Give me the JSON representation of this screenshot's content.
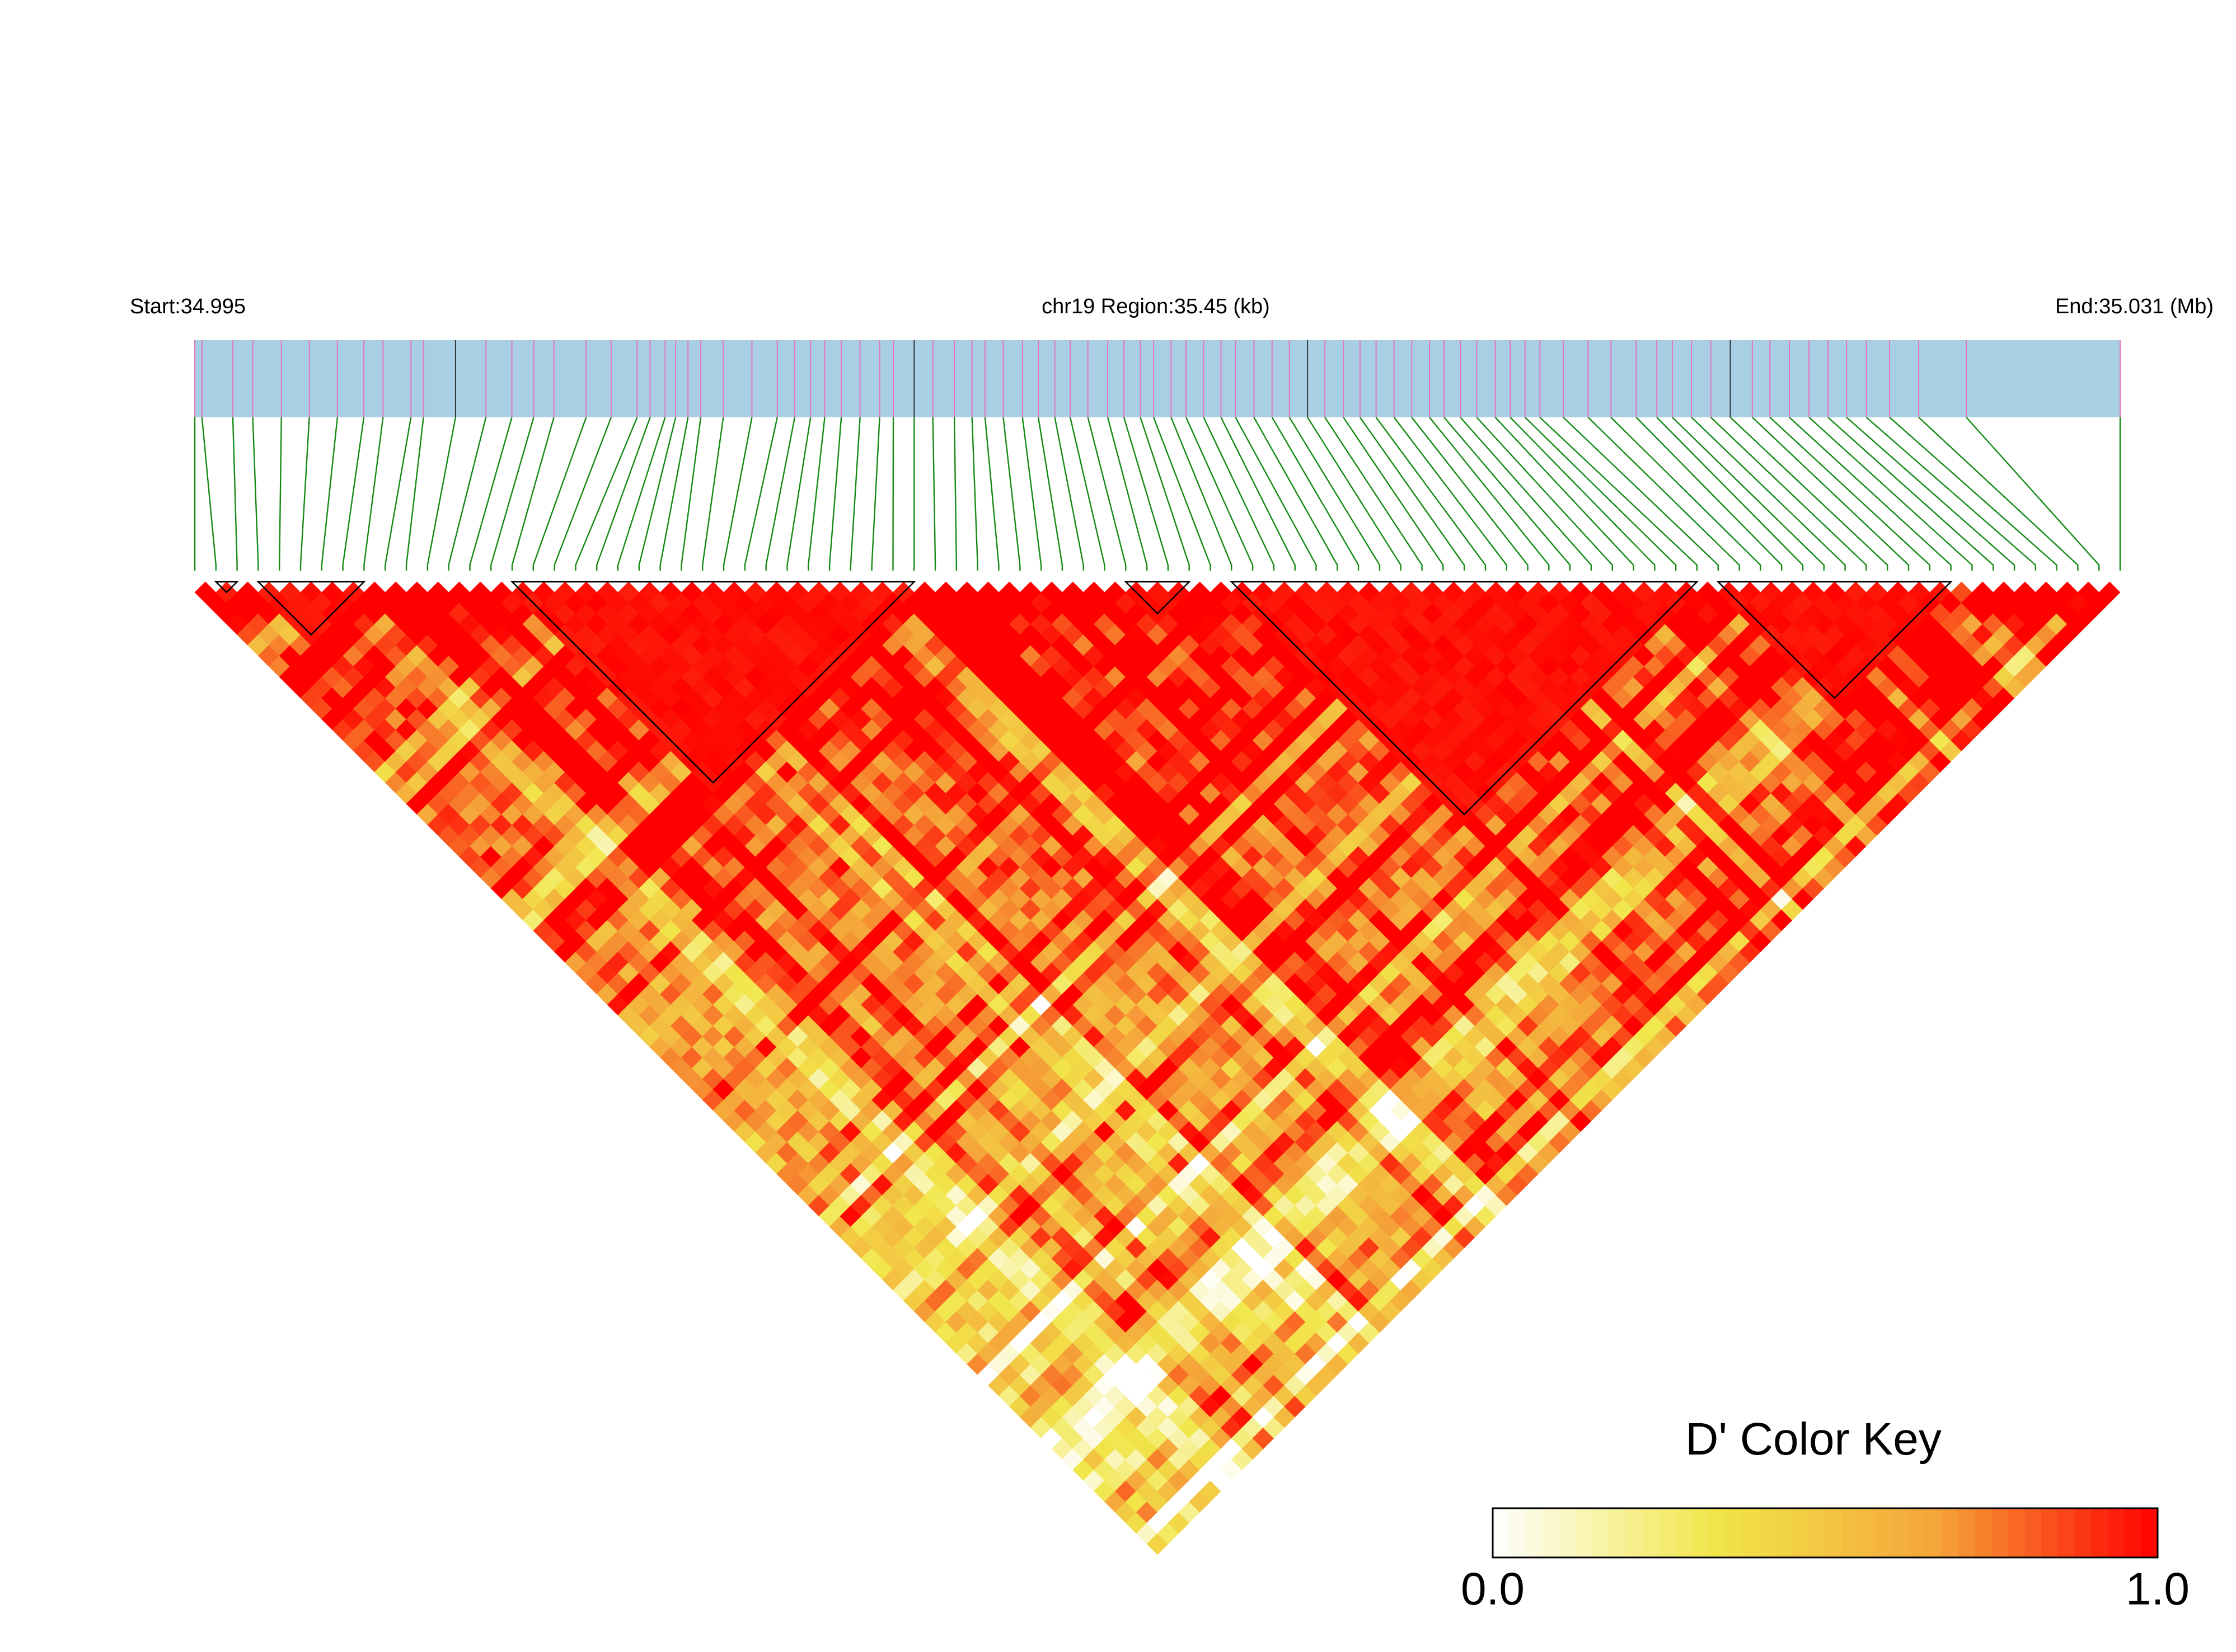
{
  "chart_data": {
    "type": "heatmap",
    "subtype": "ld-triangle",
    "header": {
      "start_label": "Start:34.995",
      "region_label": "chr19 Region:35.45 (kb)",
      "end_label": "End:35.031 (Mb)"
    },
    "region": {
      "chromosome": "chr19",
      "start_mb": 34.995,
      "end_mb": 35.031,
      "length_kb": 35.45
    },
    "snp_count": 92,
    "snp_track_colors": {
      "bar": "#a8cfe3",
      "marker": "#e377c2",
      "marker_dark": "#333333",
      "connector": "#138a13"
    },
    "snp_positions": [
      0,
      0.00372,
      0.01977,
      0.03011,
      0.04499,
      0.05949,
      0.07409,
      0.08781,
      0.09778,
      0.11228,
      0.11879,
      0.13543,
      0.15121,
      0.1647,
      0.17603,
      0.1865,
      0.20326,
      0.21627,
      0.22977,
      0.2365,
      0.2443,
      0.24975,
      0.25617,
      0.2628,
      0.2745,
      0.28938,
      0.30254,
      0.3116,
      0.31984,
      0.32719,
      0.33578,
      0.34553,
      0.35571,
      0.3628,
      0.37366,
      0.38335,
      0.39451,
      0.40368,
      0.41045,
      0.4199,
      0.42989,
      0.43813,
      0.44668,
      0.45469,
      0.46386,
      0.47416,
      0.48256,
      0.49113,
      0.49799,
      0.50707,
      0.51484,
      0.52398,
      0.53298,
      0.54052,
      0.55011,
      0.55954,
      0.56851,
      0.57794,
      0.58695,
      0.59658,
      0.6052,
      0.61356,
      0.62288,
      0.63207,
      0.6413,
      0.64884,
      0.65731,
      0.66579,
      0.67544,
      0.68323,
      0.69093,
      0.69861,
      0.71077,
      0.72366,
      0.73552,
      0.74867,
      0.75932,
      0.76742,
      0.77739,
      0.78739,
      0.79752,
      0.80897,
      0.8181,
      0.82819,
      0.83842,
      0.84822,
      0.85787,
      0.86821,
      0.88025,
      0.89536,
      0.92009,
      1.0
    ],
    "ld_blocks": [
      {
        "from_snp": 1,
        "to_snp": 2
      },
      {
        "from_snp": 3,
        "to_snp": 8
      },
      {
        "from_snp": 15,
        "to_snp": 34
      },
      {
        "from_snp": 44,
        "to_snp": 47
      },
      {
        "from_snp": 49,
        "to_snp": 71
      },
      {
        "from_snp": 72,
        "to_snp": 83
      }
    ],
    "d_prime_scale": {
      "min": 0.0,
      "max": 1.0,
      "colors": [
        "#ffffff",
        "#f1e64a",
        "#f5a53a",
        "#ff0000"
      ]
    },
    "legend": {
      "title": "D' Color Key",
      "min_label": "0.0",
      "max_label": "1.0",
      "position": "bottom-right"
    },
    "values_note_text": "",
    "d_prime_generator": {
      "seed": 20240611,
      "within_block_value": 1.0
    }
  }
}
